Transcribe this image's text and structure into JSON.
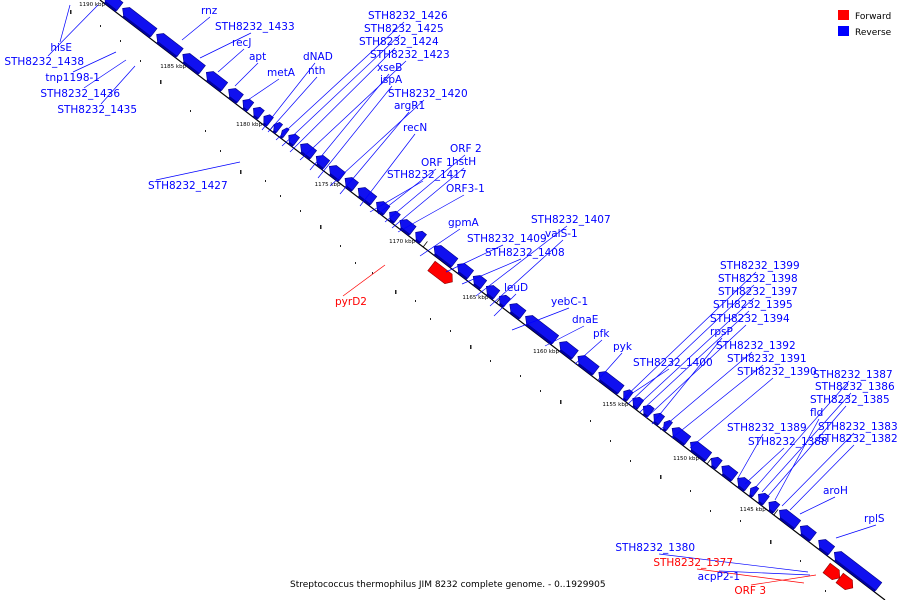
{
  "caption": "Streptococcus thermophilus JIM 8232 complete genome. - 0..1929905",
  "legend": [
    {
      "label": "Forward",
      "color": "#ff0000"
    },
    {
      "label": "Reverse",
      "color": "#0000ff"
    }
  ],
  "scale_ticks": [
    "1190 kbp",
    "1185 kbp",
    "1180 kbp",
    "1175 kbp",
    "1170 kbp",
    "1165 kbp",
    "1160 kbp",
    "1155 kbp",
    "1150 kbp",
    "1145 kbp"
  ],
  "genes": [
    {
      "name": "hisE",
      "strand": "reverse"
    },
    {
      "name": "STH8232_1438",
      "strand": "reverse"
    },
    {
      "name": "tnp1198-1",
      "strand": "reverse"
    },
    {
      "name": "STH8232_1436",
      "strand": "reverse"
    },
    {
      "name": "STH8232_1435",
      "strand": "reverse"
    },
    {
      "name": "rnz",
      "strand": "reverse"
    },
    {
      "name": "STH8232_1433",
      "strand": "reverse"
    },
    {
      "name": "recJ",
      "strand": "reverse"
    },
    {
      "name": "apt",
      "strand": "reverse"
    },
    {
      "name": "metA",
      "strand": "reverse"
    },
    {
      "name": "dNAD",
      "strand": "reverse"
    },
    {
      "name": "nth",
      "strand": "reverse"
    },
    {
      "name": "STH8232_1426",
      "strand": "reverse"
    },
    {
      "name": "STH8232_1425",
      "strand": "reverse"
    },
    {
      "name": "STH8232_1424",
      "strand": "reverse"
    },
    {
      "name": "STH8232_1423",
      "strand": "reverse"
    },
    {
      "name": "xseB",
      "strand": "reverse"
    },
    {
      "name": "ispA",
      "strand": "reverse"
    },
    {
      "name": "STH8232_1420",
      "strand": "reverse"
    },
    {
      "name": "argR1",
      "strand": "reverse"
    },
    {
      "name": "recN",
      "strand": "reverse"
    },
    {
      "name": "STH8232_1427",
      "strand": "reverse"
    },
    {
      "name": "ORF 2",
      "strand": "reverse"
    },
    {
      "name": "ORF 1",
      "strand": "reverse"
    },
    {
      "name": "hstH",
      "strand": "reverse"
    },
    {
      "name": "STH8232_1417",
      "strand": "reverse"
    },
    {
      "name": "ORF3-1",
      "strand": "reverse"
    },
    {
      "name": "gpmA",
      "strand": "reverse"
    },
    {
      "name": "STH8232_1407",
      "strand": "reverse"
    },
    {
      "name": "STH8232_1409",
      "strand": "reverse"
    },
    {
      "name": "valS-1",
      "strand": "reverse"
    },
    {
      "name": "STH8232_1408",
      "strand": "reverse"
    },
    {
      "name": "pyrD2",
      "strand": "forward"
    },
    {
      "name": "leuD",
      "strand": "reverse"
    },
    {
      "name": "yebC-1",
      "strand": "reverse"
    },
    {
      "name": "dnaE",
      "strand": "reverse"
    },
    {
      "name": "pfk",
      "strand": "reverse"
    },
    {
      "name": "pyk",
      "strand": "reverse"
    },
    {
      "name": "STH8232_1399",
      "strand": "reverse"
    },
    {
      "name": "STH8232_1398",
      "strand": "reverse"
    },
    {
      "name": "STH8232_1397",
      "strand": "reverse"
    },
    {
      "name": "STH8232_1395",
      "strand": "reverse"
    },
    {
      "name": "STH8232_1394",
      "strand": "reverse"
    },
    {
      "name": "rpsP",
      "strand": "reverse"
    },
    {
      "name": "STH8232_1392",
      "strand": "reverse"
    },
    {
      "name": "STH8232_1400",
      "strand": "reverse"
    },
    {
      "name": "STH8232_1391",
      "strand": "reverse"
    },
    {
      "name": "STH8232_1390",
      "strand": "reverse"
    },
    {
      "name": "STH8232_1387",
      "strand": "reverse"
    },
    {
      "name": "STH8232_1386",
      "strand": "reverse"
    },
    {
      "name": "STH8232_1385",
      "strand": "reverse"
    },
    {
      "name": "fld",
      "strand": "reverse"
    },
    {
      "name": "STH8232_1389",
      "strand": "reverse"
    },
    {
      "name": "STH8232_1383",
      "strand": "reverse"
    },
    {
      "name": "STH8232_1388",
      "strand": "reverse"
    },
    {
      "name": "STH8232_1382",
      "strand": "reverse"
    },
    {
      "name": "aroH",
      "strand": "reverse"
    },
    {
      "name": "rplS",
      "strand": "reverse"
    },
    {
      "name": "STH8232_1380",
      "strand": "reverse"
    },
    {
      "name": "STH8232_1377",
      "strand": "forward"
    },
    {
      "name": "acpP2-1",
      "strand": "reverse"
    },
    {
      "name": "ORF 3",
      "strand": "forward"
    }
  ]
}
